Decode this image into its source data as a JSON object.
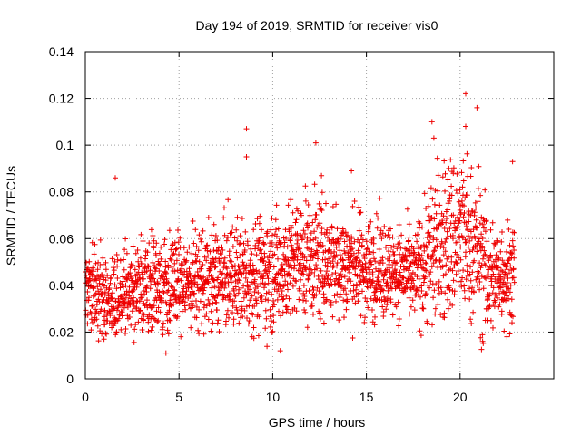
{
  "chart_data": {
    "type": "scatter",
    "title": "Day 194 of 2019, SRMTID for receiver vis0",
    "xlabel": "GPS time / hours",
    "ylabel": "SRMTID / TECUs",
    "xlim": [
      0,
      25
    ],
    "ylim": [
      0,
      0.14
    ],
    "xticks": [
      0,
      5,
      10,
      15,
      20
    ],
    "xtick_labels": [
      "0",
      "5",
      "10",
      "15",
      "20"
    ],
    "yticks": [
      0,
      0.02,
      0.04,
      0.06,
      0.08,
      0.1,
      0.12,
      0.14
    ],
    "ytick_labels": [
      "0",
      "0.02",
      "0.04",
      "0.06",
      "0.08",
      "0.1",
      "0.12",
      "0.14"
    ],
    "grid": true,
    "marker": "+",
    "color": "#ee0000",
    "series": [
      {
        "name": "SRMTID vis0",
        "x_range": [
          0,
          22.9
        ],
        "trend": [
          [
            0,
            0.038
          ],
          [
            0.5,
            0.04
          ],
          [
            1,
            0.033
          ],
          [
            1.5,
            0.034
          ],
          [
            2,
            0.036
          ],
          [
            3,
            0.039
          ],
          [
            4,
            0.04
          ],
          [
            5,
            0.041
          ],
          [
            6,
            0.042
          ],
          [
            7,
            0.043
          ],
          [
            8,
            0.044
          ],
          [
            9,
            0.045
          ],
          [
            10,
            0.046
          ],
          [
            11,
            0.05
          ],
          [
            12,
            0.052
          ],
          [
            13,
            0.05
          ],
          [
            14,
            0.049
          ],
          [
            15,
            0.048
          ],
          [
            16,
            0.047
          ],
          [
            17,
            0.046
          ],
          [
            17.5,
            0.042
          ],
          [
            18,
            0.05
          ],
          [
            19,
            0.058
          ],
          [
            20,
            0.062
          ],
          [
            21,
            0.055
          ],
          [
            21.5,
            0.042
          ],
          [
            22,
            0.045
          ],
          [
            22.9,
            0.046
          ]
        ],
        "spread": [
          [
            0,
            0.009
          ],
          [
            1,
            0.009
          ],
          [
            5,
            0.01
          ],
          [
            10,
            0.012
          ],
          [
            12,
            0.013
          ],
          [
            16,
            0.01
          ],
          [
            17.5,
            0.009
          ],
          [
            18.5,
            0.016
          ],
          [
            20,
            0.018
          ],
          [
            21.3,
            0.015
          ],
          [
            22,
            0.011
          ],
          [
            22.9,
            0.011
          ]
        ],
        "notable_points": [
          {
            "x": 1.6,
            "y": 0.086
          },
          {
            "x": 8.6,
            "y": 0.107
          },
          {
            "x": 8.6,
            "y": 0.095
          },
          {
            "x": 12.3,
            "y": 0.101
          },
          {
            "x": 12.6,
            "y": 0.087
          },
          {
            "x": 14.2,
            "y": 0.089
          },
          {
            "x": 18.5,
            "y": 0.11
          },
          {
            "x": 18.6,
            "y": 0.103
          },
          {
            "x": 20.3,
            "y": 0.122
          },
          {
            "x": 20.9,
            "y": 0.116
          },
          {
            "x": 20.3,
            "y": 0.108
          },
          {
            "x": 19.4,
            "y": 0.09
          },
          {
            "x": 22.8,
            "y": 0.093
          },
          {
            "x": 10.4,
            "y": 0.012
          },
          {
            "x": 4.3,
            "y": 0.011
          },
          {
            "x": 21.2,
            "y": 0.016
          },
          {
            "x": 1.0,
            "y": 0.017
          },
          {
            "x": 22.5,
            "y": 0.018
          }
        ]
      }
    ]
  }
}
